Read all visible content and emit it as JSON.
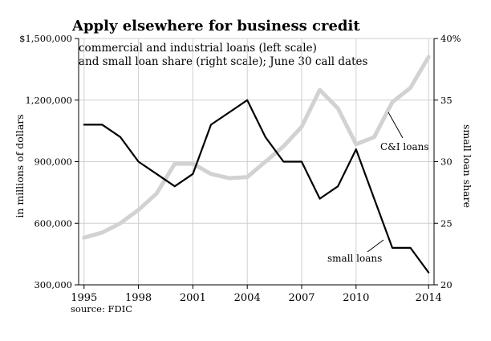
{
  "chart_data": {
    "type": "line",
    "title": "Apply elsewhere for business credit",
    "subtitle_lines": [
      "commercial and industrial loans (left scale)",
      "and small loan share (right scale); June 30 call dates"
    ],
    "ylabel_left": "in millions of dollars",
    "ylabel_right": "small loan share",
    "source": "source: FDIC",
    "x_ticks": [
      "1995",
      "1998",
      "2001",
      "2004",
      "2007",
      "2010",
      "2014"
    ],
    "x_tick_values": [
      1995,
      1998,
      2001,
      2004,
      2007,
      2010,
      2014
    ],
    "xlim": [
      1994.7,
      2014.3
    ],
    "y_left": {
      "ylim": [
        300000,
        1500000
      ],
      "ticks": [
        300000,
        600000,
        900000,
        1200000,
        1500000
      ],
      "tick_labels": [
        "300,000",
        "600,000",
        "900,000",
        "1,200,000",
        "$1,500,000"
      ]
    },
    "y_right": {
      "ylim": [
        20,
        40
      ],
      "ticks": [
        20,
        25,
        30,
        35,
        40
      ],
      "tick_labels": [
        "20",
        "25",
        "30",
        "35",
        "40%"
      ]
    },
    "grid": true,
    "series": [
      {
        "name": "C&I loans",
        "axis": "left",
        "color": "#d2d2d2",
        "x": [
          1995,
          1996,
          1997,
          1998,
          1999,
          2000,
          2001,
          2002,
          2003,
          2004,
          2005,
          2006,
          2007,
          2008,
          2009,
          2010,
          2011,
          2012,
          2013,
          2014
        ],
        "values": [
          530000,
          555000,
          600000,
          665000,
          745000,
          890000,
          890000,
          840000,
          820000,
          825000,
          900000,
          975000,
          1070000,
          1250000,
          1160000,
          985000,
          1020000,
          1190000,
          1260000,
          1410000
        ]
      },
      {
        "name": "small loans",
        "axis": "right",
        "color": "#000000",
        "x": [
          1995,
          1996,
          1997,
          1998,
          1999,
          2000,
          2001,
          2002,
          2003,
          2004,
          2005,
          2006,
          2007,
          2008,
          2009,
          2010,
          2011,
          2012,
          2013,
          2014
        ],
        "values": [
          33,
          33,
          32,
          30,
          29,
          28,
          29,
          33,
          34,
          35,
          32,
          30,
          30,
          27,
          28,
          31,
          27,
          23,
          23,
          21
        ]
      }
    ],
    "annotations": [
      {
        "text": "C&I loans",
        "series": "C&I loans"
      },
      {
        "text": "small loans",
        "series": "small loans"
      }
    ]
  }
}
